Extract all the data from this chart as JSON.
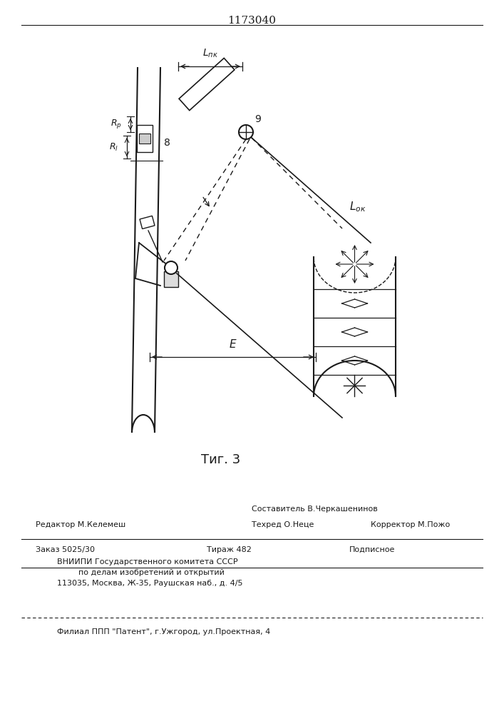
{
  "title": "1173040",
  "fig_label": "Τиг. 3",
  "bg_color": "#f5f5f0",
  "line_color": "#1a1a1a",
  "bottom_text_lines": [
    "Составитель В.Черкашенинов",
    "Редактор М.Келемеш        Техред О.Неце         Корректор М.Пожо",
    "Заказ 5025/30              Тираж 482              Подписное",
    "ВНИИПИ Государственного комитета СССР",
    "    по делам изобретений и открытий",
    "113035, Москва, Ж-35, Раушская наб., д. 4/5",
    "Филиал ППП «Патент», г.Ужгород, ул.Проектная, 4"
  ]
}
